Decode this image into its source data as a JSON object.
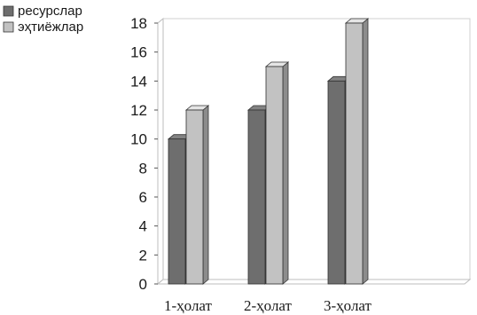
{
  "chart_data": {
    "type": "bar",
    "categories": [
      "1-ҳолат",
      "2-ҳолат",
      "3-ҳолат"
    ],
    "series": [
      {
        "name": "ресурслар",
        "values": [
          10,
          12,
          14
        ],
        "color": "#6e6e6e"
      },
      {
        "name": "эҳтиёжлар",
        "values": [
          12,
          15,
          18
        ],
        "color": "#c2c2c2"
      }
    ],
    "yticks": [
      0,
      2,
      4,
      6,
      8,
      10,
      12,
      14,
      16,
      18
    ],
    "ylim": [
      0,
      18
    ],
    "grid": false,
    "legend": "top-left",
    "style": "3d"
  }
}
